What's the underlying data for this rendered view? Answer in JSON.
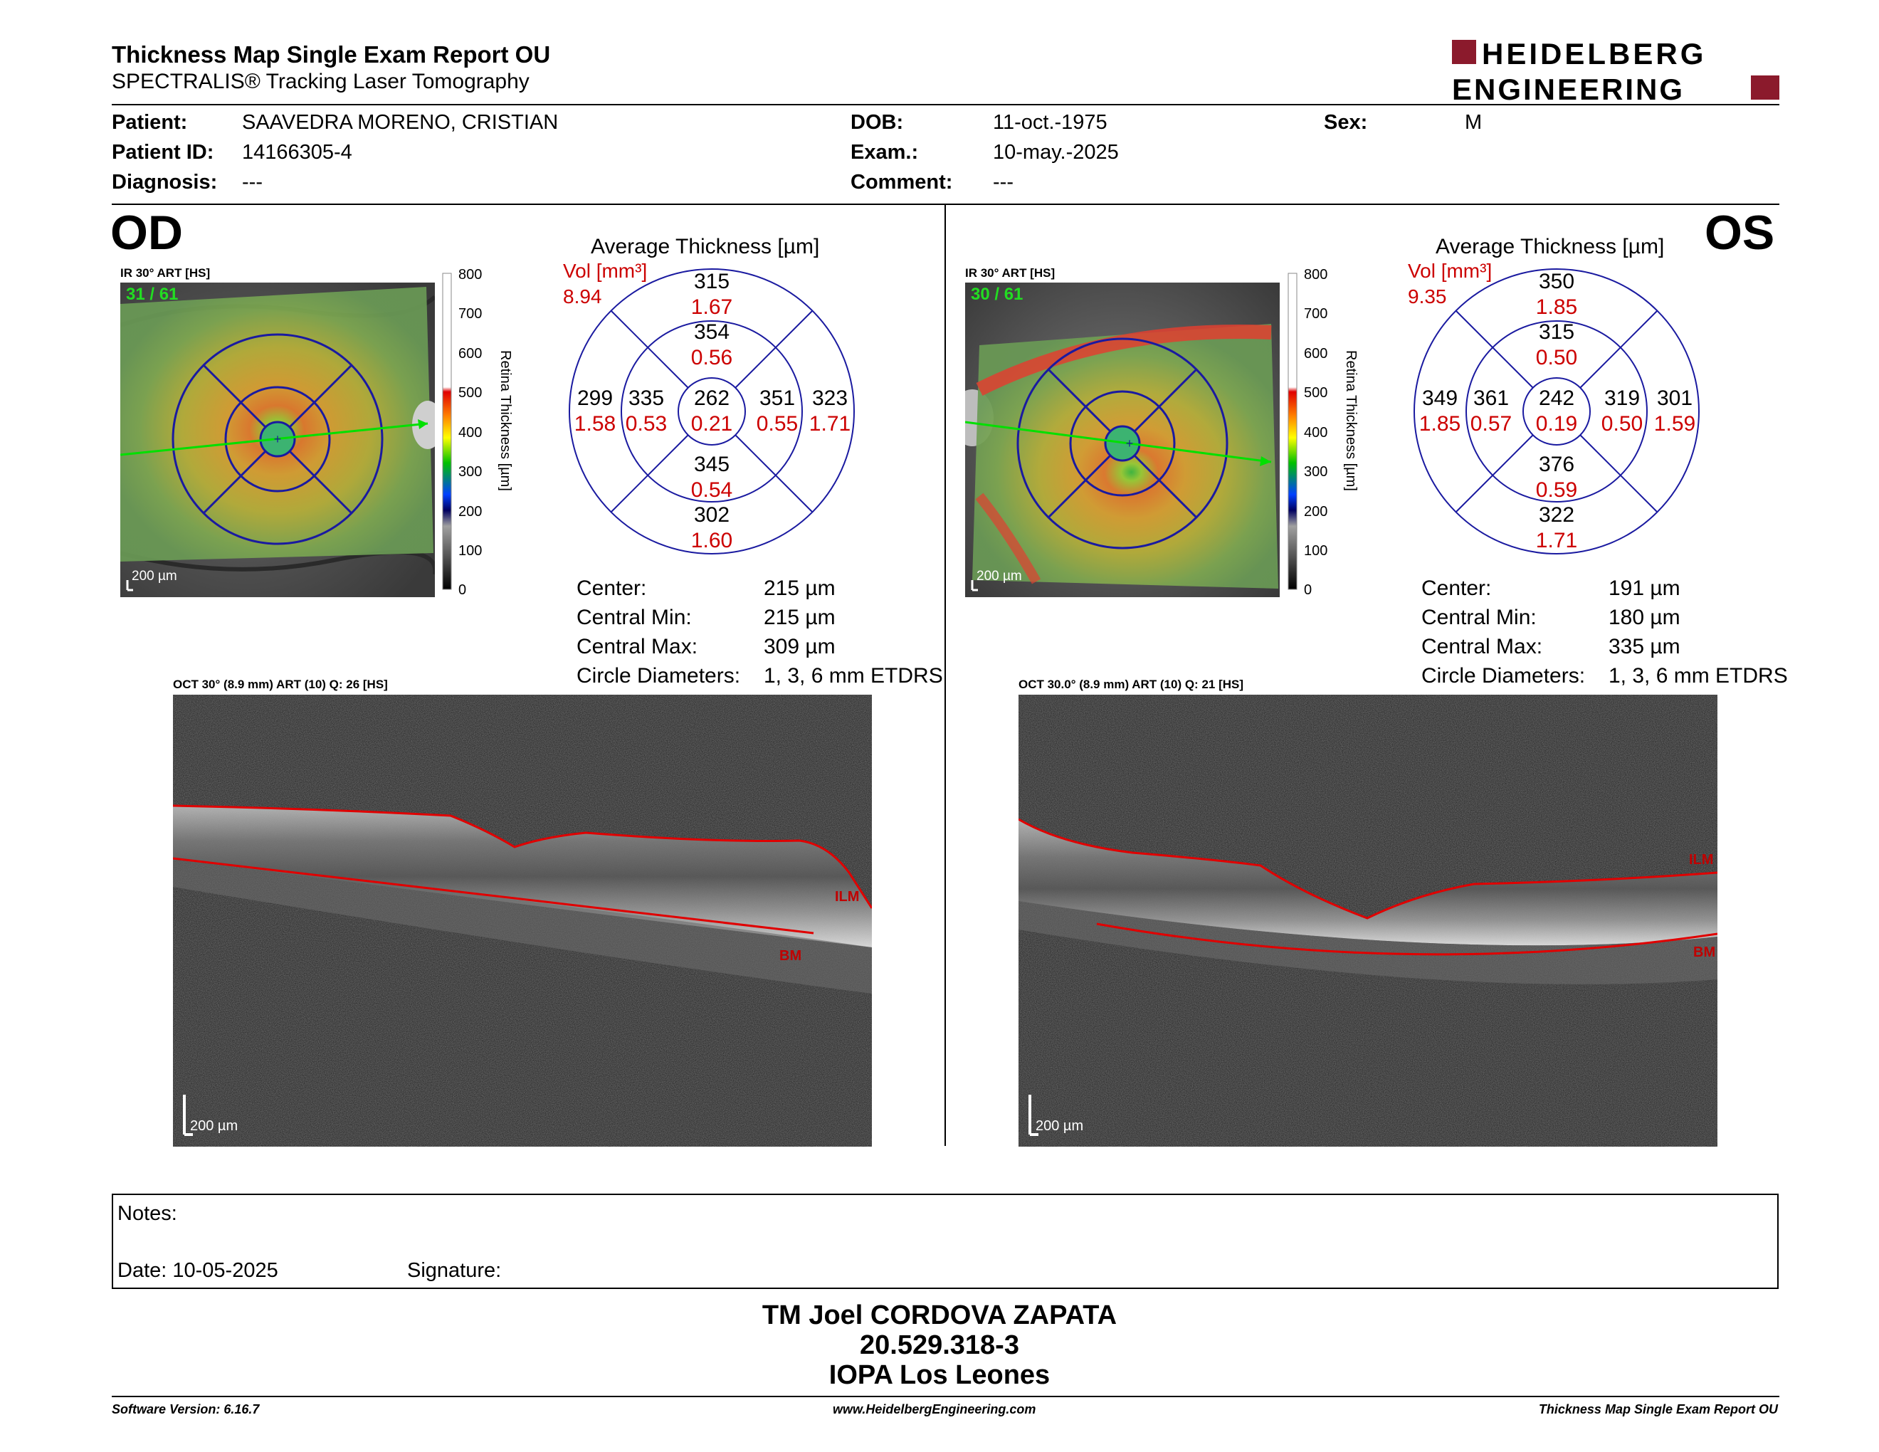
{
  "header": {
    "title": "Thickness Map Single Exam Report OU",
    "subtitle": "SPECTRALIS® Tracking Laser Tomography",
    "logo_line1": "HEIDELBERG",
    "logo_line2": "ENGINEERING",
    "brand_color": "#8b1a2c"
  },
  "patient": {
    "patient_label": "Patient:",
    "patient_value": "SAAVEDRA MORENO, CRISTIAN",
    "id_label": "Patient ID:",
    "id_value": "14166305-4",
    "diag_label": "Diagnosis:",
    "diag_value": "---",
    "dob_label": "DOB:",
    "dob_value": "11-oct.-1975",
    "exam_label": "Exam.:",
    "exam_value": "10-may.-2025",
    "comment_label": "Comment:",
    "comment_value": "---",
    "sex_label": "Sex:",
    "sex_value": "M"
  },
  "scale": {
    "ticks": [
      "800",
      "700",
      "600",
      "500",
      "400",
      "300",
      "200",
      "100",
      "0"
    ],
    "label": "Retina Thickness [µm]"
  },
  "od": {
    "eye": "OD",
    "ir_label": "IR 30° ART [HS]",
    "frames": "31 / 61",
    "scale_bar": "200 µm",
    "avg_title": "Average Thickness [µm]",
    "vol_label": "Vol [mm³]",
    "vol_total": "8.94",
    "grid": {
      "center": {
        "t": "262",
        "v": "0.21"
      },
      "inner_sup": {
        "t": "354",
        "v": "0.56"
      },
      "inner_inf": {
        "t": "345",
        "v": "0.54"
      },
      "inner_left": {
        "t": "335",
        "v": "0.53"
      },
      "inner_right": {
        "t": "351",
        "v": "0.55"
      },
      "outer_sup": {
        "t": "315",
        "v": "1.67"
      },
      "outer_inf": {
        "t": "302",
        "v": "1.60"
      },
      "outer_left": {
        "t": "299",
        "v": "1.58"
      },
      "outer_right": {
        "t": "323",
        "v": "1.71"
      }
    },
    "stats": {
      "center_label": "Center:",
      "center_value": "215 µm",
      "min_label": "Central Min:",
      "min_value": "215 µm",
      "max_label": "Central Max:",
      "max_value": "309 µm",
      "diam_label": "Circle Diameters:",
      "diam_value": "1, 3, 6 mm ETDRS"
    },
    "oct_label": "OCT 30° (8.9 mm) ART (10) Q: 26 [HS]",
    "oct_scale": "200 µm",
    "ilm": "ILM",
    "bm": "BM"
  },
  "os": {
    "eye": "OS",
    "ir_label": "IR 30° ART [HS]",
    "frames": "30 / 61",
    "scale_bar": "200 µm",
    "avg_title": "Average Thickness [µm]",
    "vol_label": "Vol [mm³]",
    "vol_total": "9.35",
    "grid": {
      "center": {
        "t": "242",
        "v": "0.19"
      },
      "inner_sup": {
        "t": "315",
        "v": "0.50"
      },
      "inner_inf": {
        "t": "376",
        "v": "0.59"
      },
      "inner_left": {
        "t": "361",
        "v": "0.57"
      },
      "inner_right": {
        "t": "319",
        "v": "0.50"
      },
      "outer_sup": {
        "t": "350",
        "v": "1.85"
      },
      "outer_inf": {
        "t": "322",
        "v": "1.71"
      },
      "outer_left": {
        "t": "349",
        "v": "1.85"
      },
      "outer_right": {
        "t": "301",
        "v": "1.59"
      }
    },
    "stats": {
      "center_label": "Center:",
      "center_value": "191 µm",
      "min_label": "Central Min:",
      "min_value": "180 µm",
      "max_label": "Central Max:",
      "max_value": "335 µm",
      "diam_label": "Circle Diameters:",
      "diam_value": "1, 3, 6 mm ETDRS"
    },
    "oct_label": "OCT 30.0° (8.9 mm) ART (10) Q: 21 [HS]",
    "oct_scale": "200 µm",
    "ilm": "ILM",
    "bm": "BM"
  },
  "notes": {
    "notes_label": "Notes:",
    "date_label": "Date: 10-05-2025",
    "signature_label": "Signature:"
  },
  "signature": {
    "name": "TM Joel CORDOVA ZAPATA",
    "rut": "20.529.318-3",
    "clinic": "IOPA Los Leones"
  },
  "footer": {
    "software": "Software Version: 6.16.7",
    "website": "www.HeidelbergEngineering.com",
    "report": "Thickness Map Single Exam Report OU"
  }
}
